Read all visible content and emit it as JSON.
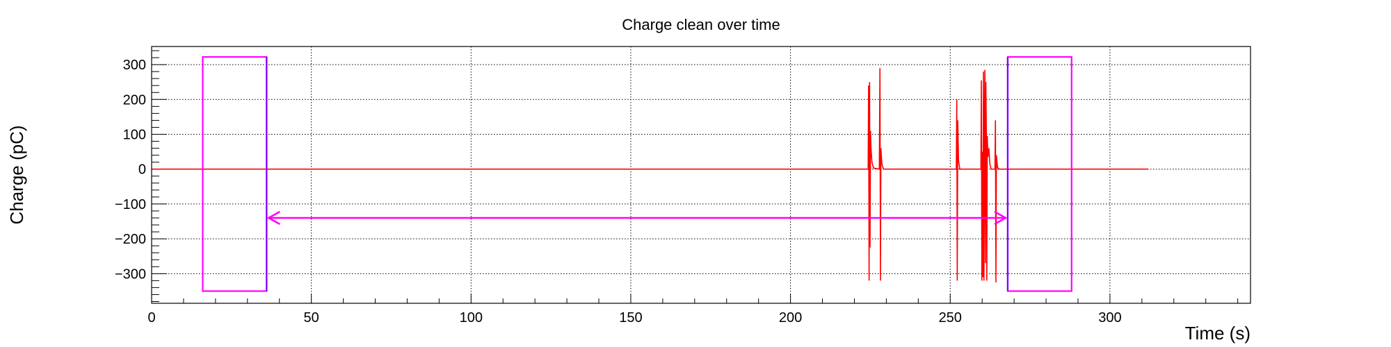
{
  "chart_data": {
    "type": "line",
    "title": "Charge clean over time",
    "xlabel": "Time (s)",
    "ylabel": "Charge (pC)",
    "xlim": [
      0,
      344
    ],
    "ylim": [
      -385,
      352
    ],
    "grid": true,
    "legend": "none",
    "x_ticks": [
      0,
      50,
      100,
      150,
      200,
      250,
      300
    ],
    "x_tick_labels": [
      "0",
      "50",
      "100",
      "150",
      "200",
      "250",
      "300"
    ],
    "y_ticks": [
      -300,
      -200,
      -100,
      0,
      100,
      200,
      300
    ],
    "y_tick_labels": [
      "−300",
      "−200",
      "−100",
      "0",
      "100",
      "200",
      "300"
    ],
    "colors": {
      "series": "#ff0000",
      "boxes": "#ff00ff",
      "box_inner_edge": "#7f00ff",
      "grid": "#000000",
      "frame": "#000000"
    },
    "series": [
      {
        "points": [
          [
            0,
            0
          ],
          [
            224.3,
            0
          ],
          [
            224.45,
            240
          ],
          [
            224.6,
            -320
          ],
          [
            224.75,
            250
          ],
          [
            224.9,
            -225
          ],
          [
            225.05,
            110
          ],
          [
            225.2,
            60
          ],
          [
            225.5,
            20
          ],
          [
            226,
            3
          ],
          [
            227.8,
            0
          ],
          [
            228.0,
            290
          ],
          [
            228.15,
            -320
          ],
          [
            228.3,
            60
          ],
          [
            228.6,
            15
          ],
          [
            229.1,
            0
          ],
          [
            251.9,
            0
          ],
          [
            252.05,
            200
          ],
          [
            252.2,
            -320
          ],
          [
            252.35,
            140
          ],
          [
            252.6,
            25
          ],
          [
            253.0,
            0
          ],
          [
            259.6,
            0
          ],
          [
            259.75,
            255
          ],
          [
            259.9,
            -320
          ],
          [
            260.05,
            50
          ],
          [
            260.2,
            -310
          ],
          [
            260.4,
            280
          ],
          [
            260.55,
            -320
          ],
          [
            260.7,
            110
          ],
          [
            260.85,
            285
          ],
          [
            261.0,
            -270
          ],
          [
            261.15,
            250
          ],
          [
            261.3,
            120
          ],
          [
            261.45,
            -320
          ],
          [
            261.6,
            95
          ],
          [
            261.8,
            35
          ],
          [
            262.1,
            60
          ],
          [
            262.4,
            15
          ],
          [
            262.8,
            0
          ],
          [
            264.0,
            0
          ],
          [
            264.15,
            140
          ],
          [
            264.3,
            -325
          ],
          [
            264.45,
            40
          ],
          [
            264.8,
            5
          ],
          [
            265.3,
            0
          ],
          [
            312,
            0
          ]
        ]
      }
    ],
    "annotations": {
      "boxes": [
        {
          "x": [
            16,
            36
          ],
          "y": [
            -350,
            322
          ]
        },
        {
          "x": [
            268,
            288
          ],
          "y": [
            -350,
            322
          ]
        }
      ],
      "double_arrow": {
        "x": [
          36,
          268
        ],
        "y": -140
      }
    }
  }
}
